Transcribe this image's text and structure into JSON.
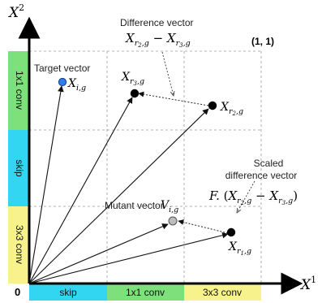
{
  "axes": {
    "x_label": "X",
    "x_sup": "1",
    "y_label": "X",
    "y_sup": "2",
    "origin": "0",
    "corner": "(1, 1)"
  },
  "x_regions": [
    {
      "label": "skip",
      "color": "#33d6f0"
    },
    {
      "label": "1x1 conv",
      "color": "#7ee07a"
    },
    {
      "label": "3x3 conv",
      "color": "#f7f28c"
    }
  ],
  "y_regions": [
    {
      "label": "1x1 conv",
      "color": "#7ee07a"
    },
    {
      "label": "skip",
      "color": "#33d6f0"
    },
    {
      "label": "3x3 conv",
      "color": "#f7f28c"
    }
  ],
  "points": {
    "target": {
      "base": "X",
      "sub": "i,g",
      "color": "#2f7fe6"
    },
    "xr3": {
      "base": "X",
      "sub": "r3,g",
      "color": "#000000"
    },
    "xr2": {
      "base": "X",
      "sub": "r2,g",
      "color": "#000000"
    },
    "mutant": {
      "base": "V",
      "sub": "i,g",
      "color": "#bdbdbd"
    },
    "xr1": {
      "base": "X",
      "sub": "r1,g",
      "color": "#000000"
    }
  },
  "annotations": {
    "target_label": "Target vector",
    "difference_label": "Difference vector",
    "difference_formula": "X r2,g − X r3,g",
    "scaled_label_1": "Scaled",
    "scaled_label_2": "difference vector",
    "scaled_formula": "F. (X r2,g − X r3,g)",
    "mutant_label": "Mutant vector"
  }
}
